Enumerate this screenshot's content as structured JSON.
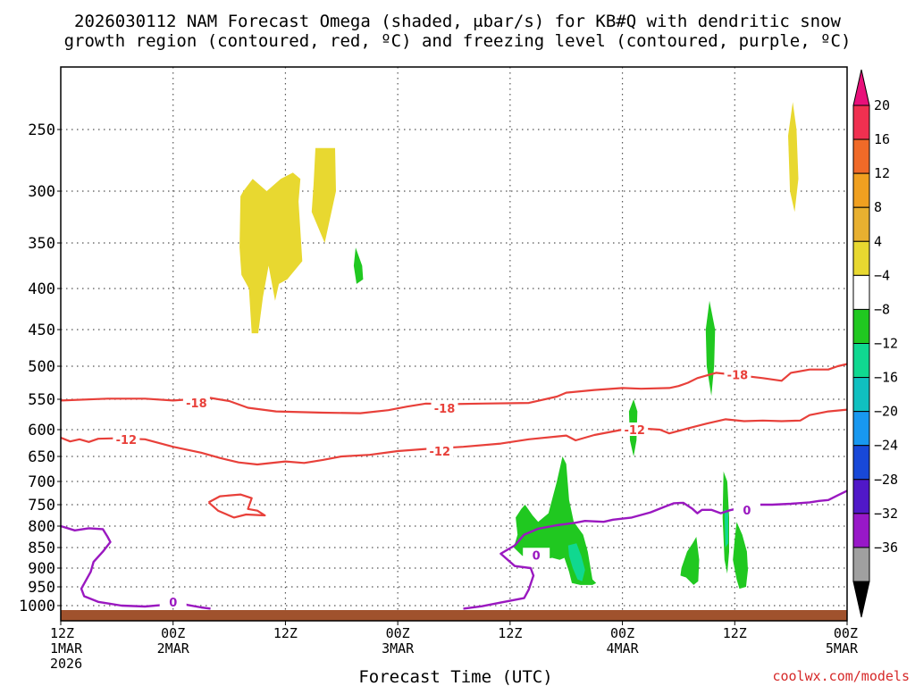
{
  "chart_data": {
    "type": "time-height cross-section",
    "title_line1": "2026030112 NAM Forecast Omega (shaded, μbar/s) for KB#Q with dendritic snow",
    "title_line2": "growth region (contoured, red, ºC) and freezing level (contoured, purple, ºC)",
    "xlabel": "Forecast Time (UTC)",
    "credit": "coolwx.com/models",
    "x_range_hours": [
      0,
      84
    ],
    "y_range_mb": [
      1050,
      200
    ],
    "y_ticks": [
      250,
      300,
      350,
      400,
      450,
      500,
      550,
      600,
      650,
      700,
      750,
      800,
      850,
      900,
      950,
      1000
    ],
    "x_ticks": [
      {
        "hour": 0,
        "line1": "12Z",
        "line2": "1MAR",
        "line3": "2026"
      },
      {
        "hour": 12,
        "line1": "00Z",
        "line2": "2MAR",
        "line3": ""
      },
      {
        "hour": 24,
        "line1": "12Z",
        "line2": "",
        "line3": ""
      },
      {
        "hour": 36,
        "line1": "00Z",
        "line2": "3MAR",
        "line3": ""
      },
      {
        "hour": 48,
        "line1": "12Z",
        "line2": "",
        "line3": ""
      },
      {
        "hour": 60,
        "line1": "00Z",
        "line2": "4MAR",
        "line3": ""
      },
      {
        "hour": 72,
        "line1": "12Z",
        "line2": "",
        "line3": ""
      },
      {
        "hour": 84,
        "line1": "00Z",
        "line2": "5MAR",
        "line3": ""
      }
    ],
    "colorbar": {
      "labels": [
        "20",
        "16",
        "12",
        "8",
        "4",
        "−4",
        "−8",
        "−12",
        "−16",
        "−20",
        "−24",
        "−28",
        "−32",
        "−36"
      ],
      "colors": [
        "#f03050",
        "#f06a28",
        "#f0a020",
        "#e8b030",
        "#e8d830",
        "#ffffff",
        "#20c820",
        "#10d890",
        "#10c0c0",
        "#1898f0",
        "#1848d8",
        "#5018c8",
        "#9818c8",
        "#a0a0a0"
      ],
      "top_arrow_color": "#e8107a",
      "bottom_arrow_color": "#000000"
    },
    "omega_areas": [
      {
        "color": "#e8d830",
        "value": "4-8",
        "points": [
          [
            19.5,
            300
          ],
          [
            20.5,
            290
          ],
          [
            22,
            300
          ],
          [
            23.5,
            290
          ],
          [
            24.8,
            285
          ],
          [
            25.6,
            290
          ],
          [
            25.4,
            310
          ],
          [
            25.8,
            370
          ],
          [
            24.2,
            390
          ],
          [
            23.3,
            395
          ],
          [
            22.9,
            415
          ],
          [
            22.2,
            375
          ],
          [
            21.6,
            410
          ],
          [
            21.1,
            455
          ],
          [
            20.4,
            455
          ],
          [
            20.1,
            400
          ],
          [
            19.3,
            385
          ],
          [
            19.1,
            355
          ],
          [
            19.2,
            305
          ]
        ]
      },
      {
        "color": "#e8d830",
        "value": "4-8",
        "points": [
          [
            27.2,
            265
          ],
          [
            29.3,
            265
          ],
          [
            29.4,
            300
          ],
          [
            28.2,
            350
          ],
          [
            27.5,
            335
          ],
          [
            26.8,
            320
          ],
          [
            27.0,
            295
          ]
        ]
      },
      {
        "color": "#e8d830",
        "value": "4-8",
        "points": [
          [
            78.2,
            228
          ],
          [
            78.6,
            250
          ],
          [
            78.8,
            290
          ],
          [
            78.4,
            320
          ],
          [
            77.9,
            300
          ],
          [
            77.7,
            255
          ]
        ]
      },
      {
        "color": "#20c820",
        "value": "-4--8",
        "points": [
          [
            31.5,
            355
          ],
          [
            32.2,
            375
          ],
          [
            32.3,
            390
          ],
          [
            31.6,
            395
          ],
          [
            31.3,
            375
          ]
        ]
      },
      {
        "color": "#20c820",
        "value": "-4--8",
        "points": [
          [
            69.3,
            415
          ],
          [
            69.9,
            450
          ],
          [
            69.8,
            500
          ],
          [
            69.5,
            545
          ],
          [
            69.0,
            500
          ],
          [
            68.9,
            450
          ]
        ]
      },
      {
        "color": "#20c820",
        "value": "-4--8",
        "points": [
          [
            61.2,
            550
          ],
          [
            61.6,
            570
          ],
          [
            61.5,
            620
          ],
          [
            61.2,
            650
          ],
          [
            60.8,
            620
          ],
          [
            60.7,
            570
          ]
        ]
      },
      {
        "color": "#20c820",
        "value": "-4--8",
        "points": [
          [
            48.6,
            780
          ],
          [
            49.2,
            760
          ],
          [
            49.6,
            750
          ],
          [
            50.4,
            775
          ],
          [
            51.0,
            790
          ],
          [
            52.1,
            770
          ],
          [
            53.0,
            700
          ],
          [
            53.6,
            650
          ],
          [
            54.0,
            665
          ],
          [
            54.3,
            740
          ],
          [
            54.8,
            790
          ],
          [
            55.8,
            820
          ],
          [
            56.3,
            860
          ],
          [
            56.8,
            930
          ],
          [
            57.2,
            940
          ],
          [
            56.8,
            945
          ],
          [
            55.5,
            945
          ],
          [
            54.6,
            940
          ],
          [
            54.3,
            910
          ],
          [
            53.8,
            875
          ],
          [
            53.3,
            880
          ],
          [
            52.5,
            875
          ],
          [
            51.4,
            880
          ],
          [
            50.2,
            875
          ],
          [
            49.3,
            870
          ],
          [
            48.4,
            850
          ],
          [
            48.8,
            820
          ]
        ]
      },
      {
        "color": "#10d890",
        "value": "-8--12",
        "points": [
          [
            54.2,
            845
          ],
          [
            55.1,
            840
          ],
          [
            55.6,
            870
          ],
          [
            56.0,
            905
          ],
          [
            55.7,
            935
          ],
          [
            55.2,
            930
          ],
          [
            54.7,
            900
          ],
          [
            54.3,
            870
          ]
        ]
      },
      {
        "color": "#20c820",
        "value": "-4--8",
        "points": [
          [
            66.3,
            900
          ],
          [
            66.9,
            860
          ],
          [
            67.5,
            840
          ],
          [
            67.9,
            825
          ],
          [
            68.2,
            880
          ],
          [
            68.1,
            935
          ],
          [
            67.6,
            945
          ],
          [
            66.8,
            925
          ],
          [
            66.2,
            920
          ]
        ]
      },
      {
        "color": "#20c820",
        "value": "-4--8",
        "points": [
          [
            70.8,
            680
          ],
          [
            71.2,
            700
          ],
          [
            71.4,
            780
          ],
          [
            71.4,
            860
          ],
          [
            71.2,
            915
          ],
          [
            70.9,
            880
          ],
          [
            70.7,
            780
          ]
        ]
      },
      {
        "color": "#10d890",
        "value": "-8--12",
        "points": [
          [
            70.9,
            760
          ],
          [
            71.3,
            770
          ],
          [
            71.3,
            840
          ],
          [
            71.0,
            850
          ]
        ]
      },
      {
        "color": "#20c820",
        "value": "-4--8",
        "points": [
          [
            72.2,
            790
          ],
          [
            72.8,
            820
          ],
          [
            73.3,
            860
          ],
          [
            73.4,
            905
          ],
          [
            73.2,
            950
          ],
          [
            72.5,
            955
          ],
          [
            72.2,
            930
          ],
          [
            71.8,
            880
          ],
          [
            72.0,
            830
          ]
        ]
      }
    ],
    "isotherm_lines": [
      {
        "color": "#e8403a",
        "label": "-18",
        "label_pos": [
          14.5,
          556
        ],
        "points": [
          [
            0,
            552
          ],
          [
            5,
            549
          ],
          [
            9,
            549
          ],
          [
            12,
            552
          ],
          [
            16,
            548
          ],
          [
            18,
            553
          ],
          [
            20,
            564
          ],
          [
            23,
            570
          ],
          [
            28,
            572
          ],
          [
            32,
            573
          ],
          [
            35,
            568
          ],
          [
            37,
            562
          ],
          [
            39,
            557
          ],
          [
            42,
            558
          ],
          [
            45,
            557
          ],
          [
            50,
            556
          ],
          [
            53,
            546
          ],
          [
            54,
            540
          ],
          [
            57,
            536
          ],
          [
            60,
            533
          ],
          [
            62,
            534
          ],
          [
            65,
            533
          ],
          [
            66,
            530
          ],
          [
            67,
            525
          ],
          [
            68,
            518
          ],
          [
            70,
            510
          ],
          [
            72,
            513
          ],
          [
            75,
            518
          ],
          [
            77,
            522
          ],
          [
            78,
            510
          ],
          [
            80,
            505
          ],
          [
            82,
            505
          ],
          [
            83,
            500
          ],
          [
            84,
            497
          ]
        ]
      },
      {
        "color": "#e8403a",
        "label": "-18",
        "label_pos": [
          72.3,
          513
        ],
        "points": []
      },
      {
        "color": "#e8403a",
        "label": "-18",
        "label_pos": [
          41.0,
          565
        ],
        "points": []
      },
      {
        "color": "#e8403a",
        "label": "-12",
        "label_pos": [
          7.0,
          618
        ],
        "points": [
          [
            0,
            615
          ],
          [
            1,
            622
          ],
          [
            2,
            618
          ],
          [
            3,
            623
          ],
          [
            4,
            617
          ],
          [
            6,
            616
          ],
          [
            9,
            618
          ],
          [
            12,
            632
          ],
          [
            15,
            643
          ],
          [
            17,
            653
          ],
          [
            19,
            662
          ],
          [
            21,
            666
          ],
          [
            24,
            660
          ],
          [
            26,
            663
          ],
          [
            28,
            657
          ],
          [
            30,
            650
          ],
          [
            33,
            647
          ],
          [
            36,
            640
          ],
          [
            39,
            636
          ],
          [
            43,
            632
          ],
          [
            47,
            626
          ],
          [
            50,
            618
          ],
          [
            54,
            611
          ],
          [
            55,
            620
          ],
          [
            57,
            610
          ],
          [
            60,
            600
          ],
          [
            62,
            598
          ],
          [
            64,
            600
          ],
          [
            65,
            607
          ],
          [
            67,
            598
          ],
          [
            69,
            590
          ],
          [
            71,
            583
          ],
          [
            73,
            586
          ],
          [
            75,
            585
          ],
          [
            77,
            586
          ],
          [
            79,
            585
          ],
          [
            80,
            576
          ],
          [
            82,
            570
          ],
          [
            84,
            567
          ]
        ]
      },
      {
        "color": "#e8403a",
        "label": "-12",
        "label_pos": [
          40.5,
          640
        ],
        "points": []
      },
      {
        "color": "#e8403a",
        "label": "-12",
        "label_pos": [
          61.3,
          600
        ],
        "points": []
      },
      {
        "color": "#e8403a",
        "label": "",
        "label_pos": [
          0,
          0
        ],
        "points": [
          [
            15.8,
            745
          ],
          [
            17,
            732
          ],
          [
            19.2,
            728
          ],
          [
            20.4,
            736
          ],
          [
            20,
            760
          ],
          [
            21,
            764
          ],
          [
            21.8,
            775
          ],
          [
            19.8,
            773
          ],
          [
            18.5,
            780
          ],
          [
            16.8,
            764
          ],
          [
            15.8,
            745
          ]
        ]
      }
    ],
    "freezing_lines": [
      {
        "color": "#9a18c0",
        "label": "0",
        "label_pos": [
          12.0,
          990
        ],
        "points": [
          [
            0,
            800
          ],
          [
            1.5,
            810
          ],
          [
            3,
            805
          ],
          [
            4.5,
            807
          ],
          [
            5,
            825
          ],
          [
            5.3,
            837
          ],
          [
            4.5,
            860
          ],
          [
            3.5,
            885
          ],
          [
            3.2,
            910
          ],
          [
            2.2,
            955
          ],
          [
            2.5,
            975
          ],
          [
            4,
            990
          ],
          [
            6.5,
            1000
          ],
          [
            9,
            1003
          ],
          [
            11,
            998
          ],
          [
            12.5,
            990
          ],
          [
            13.5,
            998
          ],
          [
            15,
            1006
          ],
          [
            16,
            1010
          ]
        ]
      },
      {
        "color": "#9a18c0",
        "label": "0",
        "label_pos": [
          50.8,
          868
        ],
        "points": [
          [
            43,
            1010
          ],
          [
            45,
            1002
          ],
          [
            47,
            992
          ],
          [
            49.5,
            980
          ],
          [
            50,
            957
          ],
          [
            50.5,
            920
          ],
          [
            50.2,
            900
          ],
          [
            48.5,
            895
          ],
          [
            47,
            865
          ],
          [
            48.5,
            845
          ],
          [
            49.5,
            820
          ],
          [
            51,
            806
          ],
          [
            53,
            798
          ],
          [
            55,
            792
          ],
          [
            56,
            788
          ],
          [
            58,
            790
          ],
          [
            59,
            785
          ],
          [
            61,
            780
          ],
          [
            63,
            768
          ],
          [
            64.5,
            755
          ],
          [
            65.5,
            747
          ],
          [
            66.5,
            746
          ],
          [
            67.5,
            760
          ],
          [
            68,
            770
          ],
          [
            68.5,
            762
          ],
          [
            69.5,
            762
          ],
          [
            70.5,
            770
          ],
          [
            71.5,
            763
          ],
          [
            72.5,
            758
          ],
          [
            74,
            750
          ],
          [
            76,
            750
          ],
          [
            78,
            748
          ],
          [
            80,
            745
          ],
          [
            81,
            742
          ],
          [
            82,
            740
          ],
          [
            83,
            730
          ],
          [
            84,
            720
          ]
        ]
      },
      {
        "color": "#9a18c0",
        "label": "0",
        "label_pos": [
          73.3,
          762
        ],
        "points": []
      }
    ]
  }
}
